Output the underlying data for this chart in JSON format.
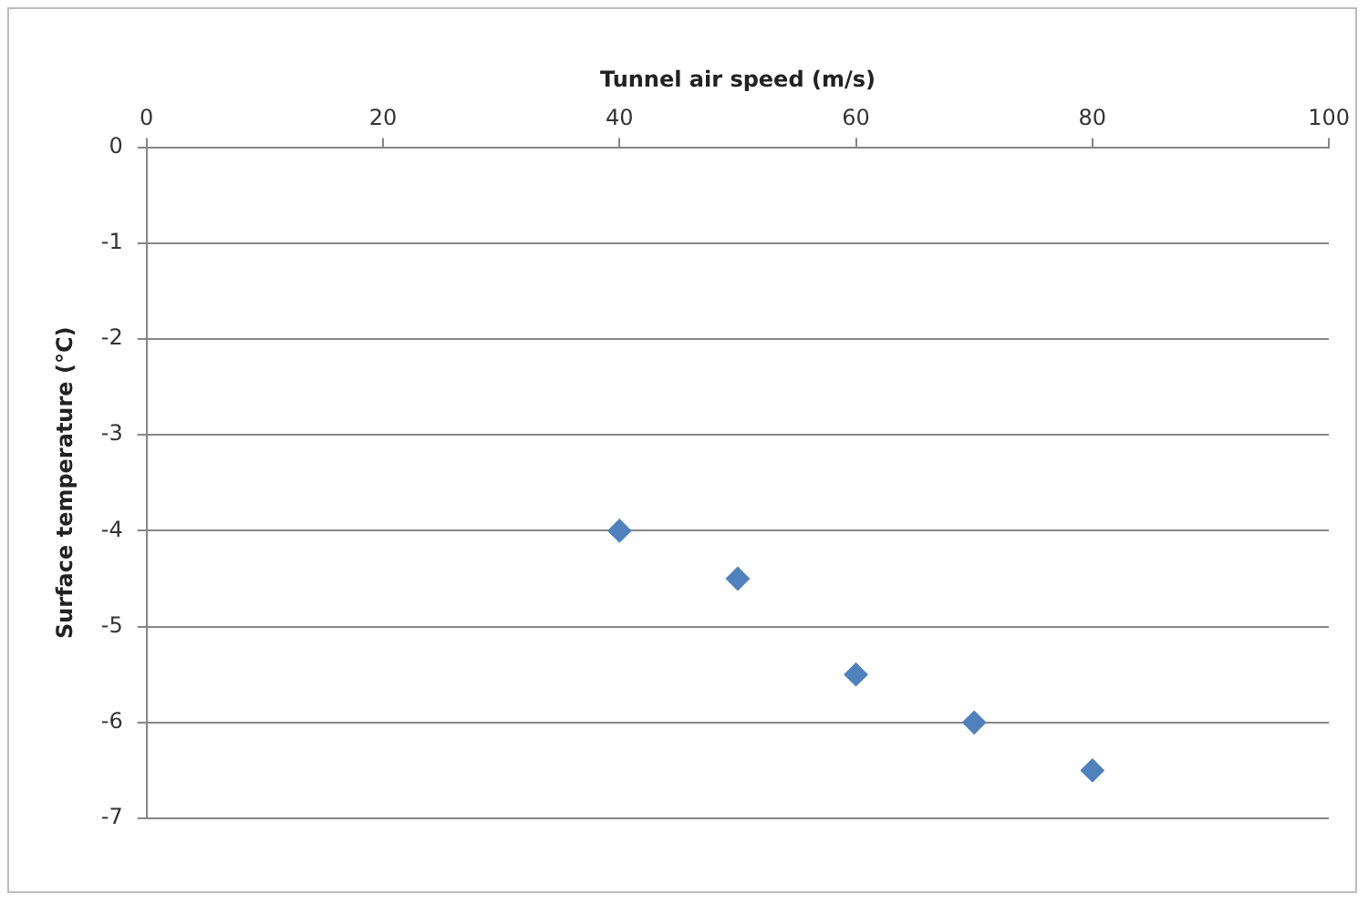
{
  "chart_data": {
    "type": "scatter",
    "xlabel": "Tunnel air speed (m/s)",
    "ylabel": "Surface temperature (°C)",
    "x": [
      40,
      50,
      60,
      70,
      80
    ],
    "series": [
      {
        "color": "#4f81bd",
        "values": [
          -4,
          -4.5,
          -5.5,
          -6,
          -6.5
        ]
      }
    ],
    "xlim": [
      0,
      100
    ],
    "xticks": [
      0,
      20,
      40,
      60,
      80,
      100
    ],
    "ylim": [
      -7,
      0
    ],
    "yticks": [
      0,
      -1,
      -2,
      -3,
      -4,
      -5,
      -6,
      -7
    ],
    "grid": "y",
    "marker": "diamond",
    "legend": false
  }
}
